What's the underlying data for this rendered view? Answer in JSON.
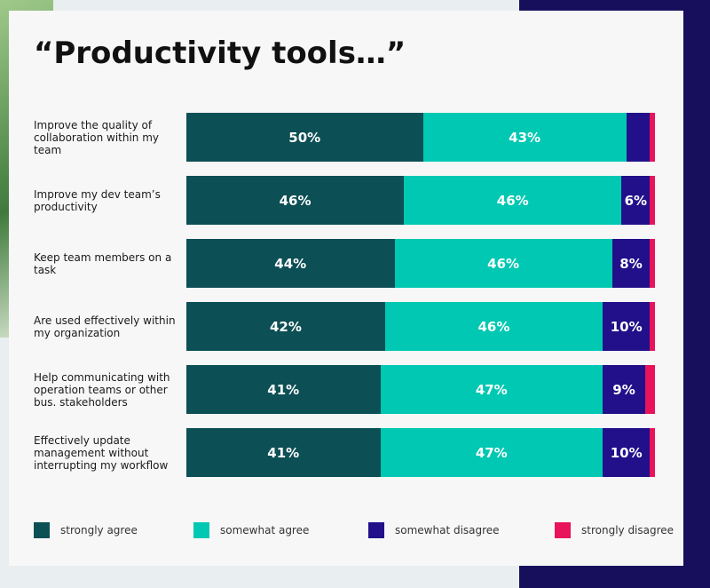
{
  "chart_data": {
    "type": "stacked-bar-horizontal",
    "title": "“Productivity tools…”",
    "categories": [
      "Improve the quality of collaboration within my team",
      "Improve my dev team’s productivity",
      "Keep team members on a task",
      "Are used effectively within my organization",
      "Help communicating with operation teams or other bus. stakeholders",
      "Effectively update management without interrupting my workflow"
    ],
    "xlim": [
      0,
      100
    ],
    "series": [
      {
        "name": "strongly agree",
        "color": "#0c4f55",
        "values": [
          50,
          46,
          44,
          42,
          41,
          41
        ],
        "value_labels": [
          "50%",
          "46%",
          "44%",
          "42%",
          "41%",
          "41%"
        ]
      },
      {
        "name": "somewhat agree",
        "color": "#00c8b2",
        "values": [
          43,
          46,
          46,
          46,
          47,
          47
        ],
        "value_labels": [
          "43%",
          "46%",
          "46%",
          "46%",
          "47%",
          "47%"
        ]
      },
      {
        "name": "somewhat disagree",
        "color": "#21108a",
        "values": [
          5,
          6,
          8,
          10,
          9,
          10
        ],
        "value_labels": [
          null,
          "6%",
          "8%",
          "10%",
          "9%",
          "10%"
        ]
      },
      {
        "name": "strongly disagree",
        "color": "#e8135a",
        "values": [
          1,
          1,
          1,
          1,
          2,
          1
        ],
        "value_labels": [
          null,
          null,
          null,
          null,
          null,
          null
        ]
      }
    ],
    "legend": "bottom"
  }
}
